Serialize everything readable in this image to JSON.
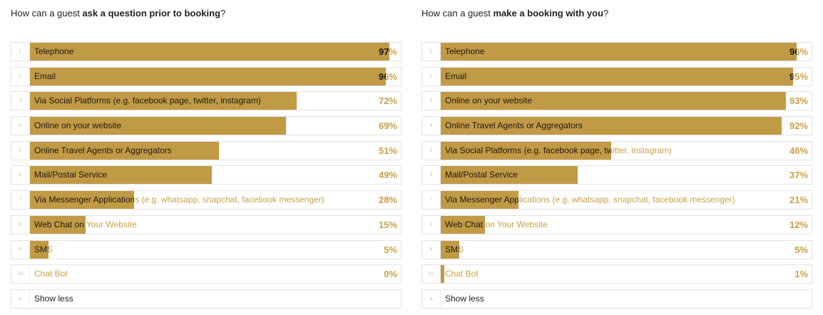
{
  "chart_data": [
    {
      "type": "bar",
      "title_prefix": "How can a guest ",
      "title_bold": "ask a question prior to booking",
      "title_suffix": "?",
      "categories": [
        "Telephone",
        "Email",
        "Via Social Platforms (e.g. facebook page, twitter, instagram)",
        "Online on your website",
        "Online Travel Agents or Aggregators",
        "Mail/Postal Service",
        "Via Messenger Applications (e.g. whatsapp, snapchat, facebook messenger)",
        "Web Chat on Your Website",
        "SMS",
        "Chat Bot"
      ],
      "values": [
        97,
        96,
        72,
        69,
        51,
        49,
        28,
        15,
        5,
        0
      ],
      "ylim": [
        0,
        100
      ],
      "show_less_label": "Show less"
    },
    {
      "type": "bar",
      "title_prefix": "How can a guest ",
      "title_bold": "make a booking with you",
      "title_suffix": "?",
      "categories": [
        "Telephone",
        "Email",
        "Online on your website",
        "Online Travel Agents or Aggregators",
        "Via Social Platforms (e.g. facebook page, twitter, instagram)",
        "Mail/Postal Service",
        "Via Messenger Applications (e.g. whatsapp, snapchat, facebook messenger)",
        "Web Chat on Your Website",
        "SMS",
        "Chat Bot"
      ],
      "values": [
        96,
        95,
        93,
        92,
        46,
        37,
        21,
        12,
        5,
        1
      ],
      "ylim": [
        0,
        100
      ],
      "show_less_label": "Show less"
    }
  ],
  "colors": {
    "bar": "#c19a45",
    "text_on_bar": "#1f1a12",
    "text_off_bar": "#c9a04a"
  },
  "icons": {
    "show_less": "caret-up-icon"
  }
}
